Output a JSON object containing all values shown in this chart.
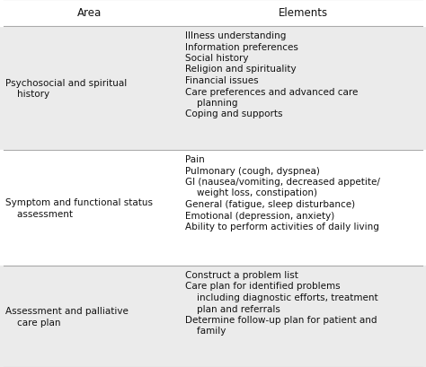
{
  "col_headers": [
    "Area",
    "Elements"
  ],
  "rows": [
    {
      "area": "Psychosocial and spiritual\n    history",
      "elements": [
        "Illness understanding",
        "Information preferences",
        "Social history",
        "Religion and spirituality",
        "Financial issues",
        "Care preferences and advanced care",
        "    planning",
        "Coping and supports"
      ],
      "bg": "#ebebeb"
    },
    {
      "area": "Symptom and functional status\n    assessment",
      "elements": [
        "Pain",
        "Pulmonary (cough, dyspnea)",
        "GI (nausea/vomiting, decreased appetite/",
        "    weight loss, constipation)",
        "General (fatigue, sleep disturbance)",
        "Emotional (depression, anxiety)",
        "Ability to perform activities of daily living"
      ],
      "bg": "#ffffff"
    },
    {
      "area": "Assessment and palliative\n    care plan",
      "elements": [
        "Construct a problem list",
        "Care plan for identified problems",
        "    including diagnostic efforts, treatment",
        "    plan and referrals",
        "Determine follow-up plan for patient and",
        "    family"
      ],
      "bg": "#ebebeb"
    }
  ],
  "font_size": 7.5,
  "header_font_size": 8.5,
  "text_color": "#111111",
  "line_color": "#aaaaaa",
  "fig_width": 4.74,
  "fig_height": 4.1,
  "dpi": 100
}
